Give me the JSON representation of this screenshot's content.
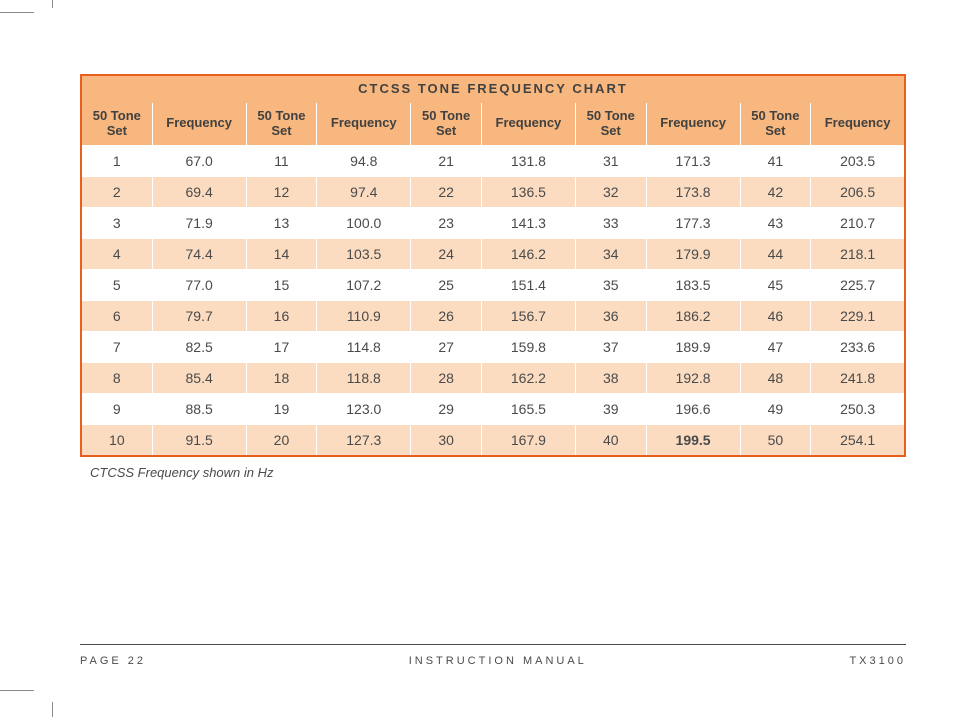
{
  "chart": {
    "title": "CTCSS TONE FREQUENCY CHART",
    "title_bg": "#e95f20",
    "title_color": "#ffffff",
    "header_bg": "#f7b77e",
    "row_even_bg": "#fbdcc1",
    "row_odd_bg": "#ffffff",
    "border_color": "#e95f20",
    "text_color": "#4a4a4a",
    "col_header_tone": "50 Tone Set",
    "col_header_freq": "Frequency",
    "footnote": "CTCSS Frequency shown in Hz",
    "column_groups": 5,
    "rows_per_group": 10,
    "data": [
      {
        "set": 1,
        "freq": "67.0"
      },
      {
        "set": 2,
        "freq": "69.4"
      },
      {
        "set": 3,
        "freq": "71.9"
      },
      {
        "set": 4,
        "freq": "74.4"
      },
      {
        "set": 5,
        "freq": "77.0"
      },
      {
        "set": 6,
        "freq": "79.7"
      },
      {
        "set": 7,
        "freq": "82.5"
      },
      {
        "set": 8,
        "freq": "85.4"
      },
      {
        "set": 9,
        "freq": "88.5"
      },
      {
        "set": 10,
        "freq": "91.5"
      },
      {
        "set": 11,
        "freq": "94.8"
      },
      {
        "set": 12,
        "freq": "97.4"
      },
      {
        "set": 13,
        "freq": "100.0"
      },
      {
        "set": 14,
        "freq": "103.5"
      },
      {
        "set": 15,
        "freq": "107.2"
      },
      {
        "set": 16,
        "freq": "110.9"
      },
      {
        "set": 17,
        "freq": "114.8"
      },
      {
        "set": 18,
        "freq": "118.8"
      },
      {
        "set": 19,
        "freq": "123.0"
      },
      {
        "set": 20,
        "freq": "127.3"
      },
      {
        "set": 21,
        "freq": "131.8"
      },
      {
        "set": 22,
        "freq": "136.5"
      },
      {
        "set": 23,
        "freq": "141.3"
      },
      {
        "set": 24,
        "freq": "146.2"
      },
      {
        "set": 25,
        "freq": "151.4"
      },
      {
        "set": 26,
        "freq": "156.7"
      },
      {
        "set": 27,
        "freq": "159.8"
      },
      {
        "set": 28,
        "freq": "162.2"
      },
      {
        "set": 29,
        "freq": "165.5"
      },
      {
        "set": 30,
        "freq": "167.9"
      },
      {
        "set": 31,
        "freq": "171.3"
      },
      {
        "set": 32,
        "freq": "173.8"
      },
      {
        "set": 33,
        "freq": "177.3"
      },
      {
        "set": 34,
        "freq": "179.9"
      },
      {
        "set": 35,
        "freq": "183.5"
      },
      {
        "set": 36,
        "freq": "186.2"
      },
      {
        "set": 37,
        "freq": "189.9"
      },
      {
        "set": 38,
        "freq": "192.8"
      },
      {
        "set": 39,
        "freq": "196.6"
      },
      {
        "set": 40,
        "freq": "199.5",
        "bold": true
      },
      {
        "set": 41,
        "freq": "203.5"
      },
      {
        "set": 42,
        "freq": "206.5"
      },
      {
        "set": 43,
        "freq": "210.7"
      },
      {
        "set": 44,
        "freq": "218.1"
      },
      {
        "set": 45,
        "freq": "225.7"
      },
      {
        "set": 46,
        "freq": "229.1"
      },
      {
        "set": 47,
        "freq": "233.6"
      },
      {
        "set": 48,
        "freq": "241.8"
      },
      {
        "set": 49,
        "freq": "250.3"
      },
      {
        "set": 50,
        "freq": "254.1"
      }
    ]
  },
  "footer": {
    "page_label": "PAGE 22",
    "center_label": "INSTRUCTION MANUAL",
    "model_label": "TX3100",
    "line_color": "#4a4a4a"
  },
  "crop_marks": {
    "color": "#888888"
  }
}
